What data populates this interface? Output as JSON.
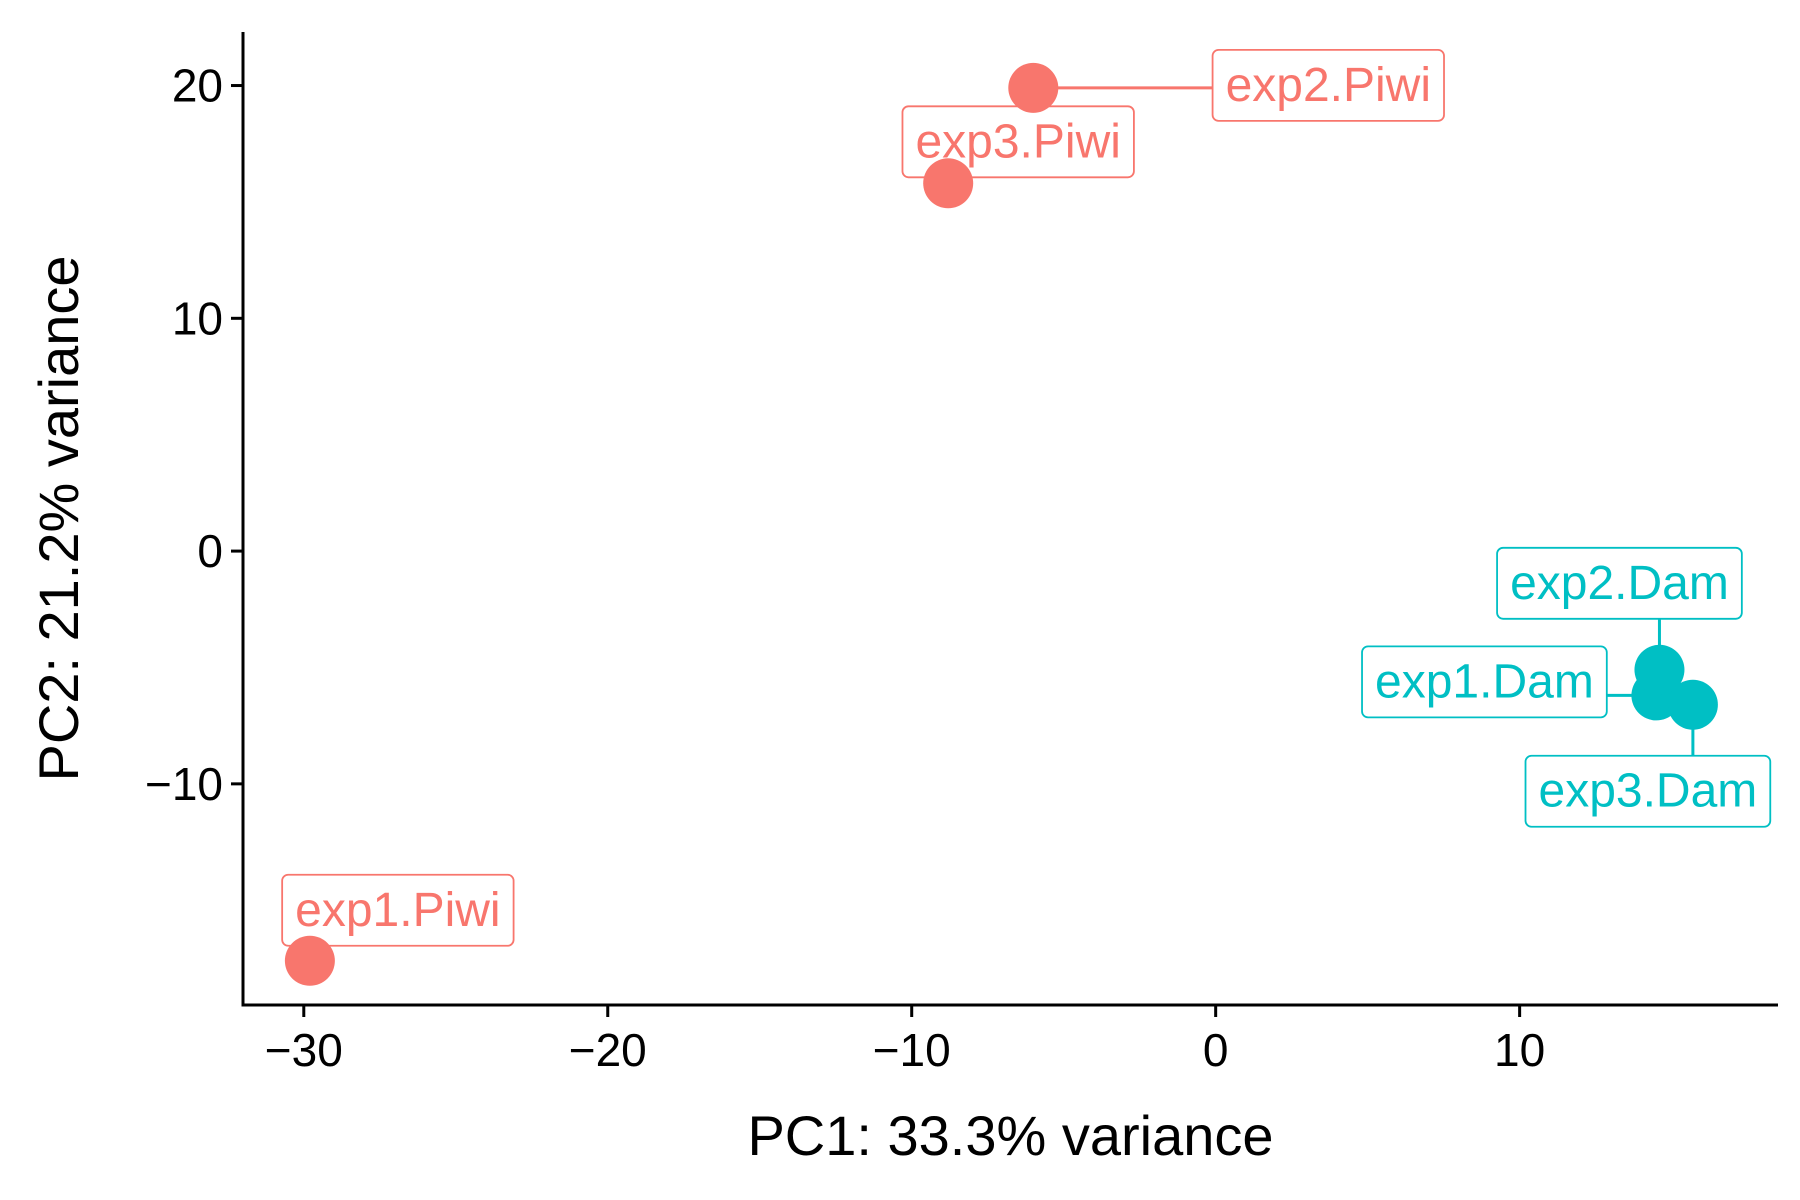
{
  "chart_data": {
    "type": "scatter",
    "xlabel": "PC1: 33.3% variance",
    "ylabel": "PC2: 21.2% variance",
    "xlim": [
      -32,
      18.5
    ],
    "ylim": [
      -19.5,
      22.3
    ],
    "x_ticks": [
      -30,
      -20,
      -10,
      0,
      10
    ],
    "y_ticks": [
      -10,
      0,
      10,
      20
    ],
    "x_tick_labels": [
      "−30",
      "−20",
      "−10",
      "0",
      "10"
    ],
    "y_tick_labels": [
      "−10",
      "0",
      "10",
      "20"
    ],
    "grid": false,
    "legend": "none",
    "colors": {
      "Piwi": "#F8766D",
      "Dam": "#00BFC4"
    },
    "points": [
      {
        "label": "exp1.Piwi",
        "group": "Piwi",
        "x": -29.8,
        "y": -17.6
      },
      {
        "label": "exp2.Piwi",
        "group": "Piwi",
        "x": -6.0,
        "y": 19.9
      },
      {
        "label": "exp3.Piwi",
        "group": "Piwi",
        "x": -8.8,
        "y": 15.8
      },
      {
        "label": "exp1.Dam",
        "group": "Dam",
        "x": 14.5,
        "y": -6.2
      },
      {
        "label": "exp2.Dam",
        "group": "Dam",
        "x": 14.6,
        "y": -5.1
      },
      {
        "label": "exp3.Dam",
        "group": "Dam",
        "x": 15.7,
        "y": -6.6
      }
    ]
  }
}
